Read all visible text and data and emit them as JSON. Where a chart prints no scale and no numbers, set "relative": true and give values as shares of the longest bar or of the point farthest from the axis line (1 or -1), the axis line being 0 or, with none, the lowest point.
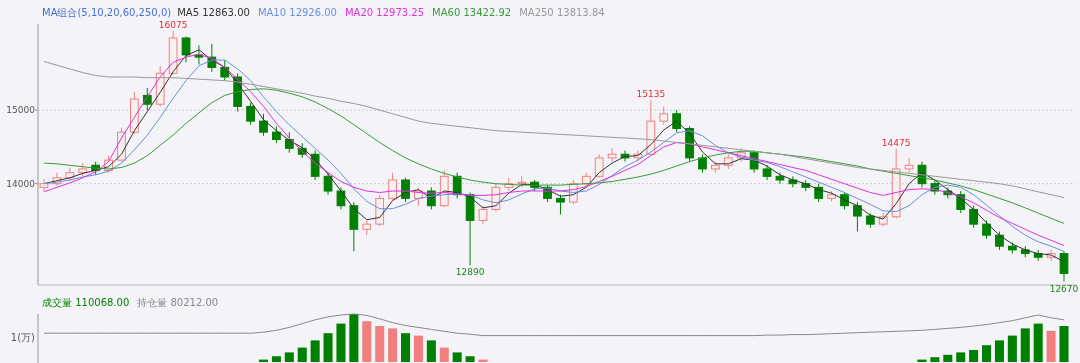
{
  "chart_data": [
    {
      "type": "candlestick",
      "categories": [
        null,
        null,
        null,
        null,
        null,
        null,
        null,
        null,
        null,
        null,
        null,
        null,
        null,
        null,
        null,
        null,
        null,
        null,
        null,
        null,
        null,
        null,
        null,
        null,
        null,
        null,
        null,
        null,
        null,
        null,
        null,
        null,
        null,
        null,
        null,
        null,
        null,
        null,
        null,
        null,
        null,
        null,
        null,
        null,
        null,
        null,
        null,
        null,
        null,
        null,
        null,
        null,
        null,
        null,
        null,
        null,
        null,
        null,
        null,
        null,
        null,
        null,
        null,
        null,
        null,
        null,
        null,
        null,
        null,
        null,
        null,
        null,
        null,
        null,
        null,
        null,
        null,
        null,
        null,
        null
      ],
      "ohlc": [
        [
          13950,
          14060,
          13900,
          14000
        ],
        [
          14000,
          14150,
          13970,
          14080
        ],
        [
          14080,
          14220,
          14040,
          14150
        ],
        [
          14150,
          14280,
          14100,
          14200
        ],
        [
          14250,
          14300,
          14120,
          14180
        ],
        [
          14180,
          14380,
          14150,
          14320
        ],
        [
          14320,
          14760,
          14300,
          14700
        ],
        [
          14700,
          15250,
          14680,
          15150
        ],
        [
          15200,
          15300,
          15000,
          15080
        ],
        [
          15080,
          15600,
          15050,
          15500
        ],
        [
          15500,
          16075,
          15480,
          15980
        ],
        [
          15980,
          16000,
          15650,
          15750
        ],
        [
          15750,
          15880,
          15620,
          15720
        ],
        [
          15720,
          15900,
          15520,
          15580
        ],
        [
          15580,
          15680,
          15400,
          15450
        ],
        [
          15450,
          15500,
          14980,
          15050
        ],
        [
          15050,
          15100,
          14800,
          14850
        ],
        [
          14850,
          14950,
          14650,
          14700
        ],
        [
          14700,
          14780,
          14550,
          14600
        ],
        [
          14600,
          14700,
          14420,
          14480
        ],
        [
          14480,
          14550,
          14350,
          14400
        ],
        [
          14400,
          14450,
          14050,
          14100
        ],
        [
          14100,
          14150,
          13850,
          13900
        ],
        [
          13900,
          13950,
          13650,
          13700
        ],
        [
          13700,
          13750,
          13080,
          13380
        ],
        [
          13380,
          13500,
          13300,
          13450
        ],
        [
          13450,
          13850,
          13420,
          13800
        ],
        [
          13800,
          14150,
          13780,
          14050
        ],
        [
          14050,
          14080,
          13750,
          13800
        ],
        [
          13800,
          13950,
          13700,
          13900
        ],
        [
          13900,
          13950,
          13650,
          13700
        ],
        [
          13700,
          14180,
          13680,
          14100
        ],
        [
          14100,
          14150,
          13800,
          13850
        ],
        [
          13850,
          13880,
          12890,
          13500
        ],
        [
          13500,
          13700,
          13450,
          13650
        ],
        [
          13650,
          14000,
          13620,
          13950
        ],
        [
          13950,
          14080,
          13900,
          14000
        ],
        [
          14000,
          14100,
          13950,
          14020
        ],
        [
          14020,
          14050,
          13900,
          13950
        ],
        [
          13950,
          13980,
          13750,
          13800
        ],
        [
          13800,
          13850,
          13580,
          13750
        ],
        [
          13750,
          14050,
          13720,
          14000
        ],
        [
          14000,
          14150,
          13950,
          14100
        ],
        [
          14100,
          14400,
          14080,
          14350
        ],
        [
          14350,
          14480,
          14300,
          14400
        ],
        [
          14400,
          14450,
          14300,
          14350
        ],
        [
          14350,
          14450,
          14300,
          14400
        ],
        [
          14400,
          15135,
          14380,
          14850
        ],
        [
          14850,
          15050,
          14800,
          14950
        ],
        [
          14950,
          15000,
          14700,
          14750
        ],
        [
          14750,
          14780,
          14300,
          14350
        ],
        [
          14350,
          14400,
          14150,
          14200
        ],
        [
          14200,
          14300,
          14150,
          14250
        ],
        [
          14250,
          14400,
          14200,
          14350
        ],
        [
          14350,
          14480,
          14300,
          14420
        ],
        [
          14420,
          14450,
          14150,
          14200
        ],
        [
          14200,
          14250,
          14050,
          14100
        ],
        [
          14100,
          14150,
          14000,
          14050
        ],
        [
          14050,
          14100,
          13950,
          14000
        ],
        [
          14000,
          14050,
          13900,
          13950
        ],
        [
          13950,
          14000,
          13750,
          13800
        ],
        [
          13800,
          13900,
          13760,
          13850
        ],
        [
          13850,
          13880,
          13650,
          13700
        ],
        [
          13700,
          13750,
          13350,
          13560
        ],
        [
          13560,
          13600,
          13400,
          13450
        ],
        [
          13450,
          13600,
          13420,
          13550
        ],
        [
          13550,
          14475,
          13530,
          14200
        ],
        [
          14200,
          14350,
          14150,
          14250
        ],
        [
          14250,
          14300,
          13950,
          14000
        ],
        [
          14000,
          14050,
          13850,
          13900
        ],
        [
          13900,
          13950,
          13800,
          13850
        ],
        [
          13850,
          13900,
          13600,
          13650
        ],
        [
          13650,
          13700,
          13400,
          13450
        ],
        [
          13450,
          13500,
          13250,
          13300
        ],
        [
          13300,
          13350,
          13100,
          13150
        ],
        [
          13150,
          13200,
          13050,
          13100
        ],
        [
          13100,
          13150,
          13000,
          13050
        ],
        [
          13050,
          13100,
          12950,
          13000
        ],
        [
          13000,
          13100,
          12950,
          13050
        ],
        [
          13050,
          13080,
          12670,
          12780
        ]
      ],
      "series": [
        {
          "type": "line",
          "name": "MA5 12863.00",
          "color": "#333333",
          "values": [
            14000,
            14040,
            14080,
            14140,
            14180,
            14230,
            14400,
            14720,
            14980,
            15240,
            15520,
            15740,
            15820,
            15680,
            15580,
            15360,
            15120,
            14870,
            14720,
            14590,
            14490,
            14330,
            14130,
            13900,
            13660,
            13510,
            13540,
            13770,
            13880,
            13920,
            13800,
            13900,
            13880,
            13820,
            13670,
            13700,
            13870,
            13990,
            13990,
            13920,
            13830,
            13850,
            13950,
            14150,
            14280,
            14370,
            14380,
            14530,
            14730,
            14850,
            14680,
            14430,
            14270,
            14270,
            14340,
            14320,
            14240,
            14120,
            14050,
            14000,
            13920,
            13870,
            13780,
            13700,
            13570,
            13520,
            13730,
            14000,
            14150,
            14050,
            13920,
            13800,
            13650,
            13470,
            13300,
            13180,
            13100,
            13050,
            13030,
            12940
          ]
        },
        {
          "type": "line",
          "name": "MA10 12926.00",
          "color": "#6a8fe0",
          "values": [
            14000,
            14020,
            14050,
            14090,
            14120,
            14170,
            14280,
            14460,
            14660,
            14900,
            15160,
            15400,
            15600,
            15680,
            15680,
            15560,
            15400,
            15180,
            14980,
            14800,
            14640,
            14480,
            14320,
            14140,
            13930,
            13760,
            13660,
            13660,
            13720,
            13800,
            13830,
            13850,
            13860,
            13850,
            13780,
            13740,
            13780,
            13860,
            13930,
            13940,
            13900,
            13880,
            13900,
            13990,
            14110,
            14230,
            14320,
            14430,
            14560,
            14690,
            14720,
            14650,
            14520,
            14420,
            14360,
            14320,
            14290,
            14230,
            14160,
            14090,
            14020,
            13950,
            13880,
            13800,
            13720,
            13630,
            13620,
            13700,
            13850,
            13950,
            13980,
            13950,
            13850,
            13710,
            13560,
            13420,
            13300,
            13210,
            13150,
            13080
          ]
        },
        {
          "type": "line",
          "name": "MA20 12973.25",
          "color": "#e030e0",
          "values": [
            13890,
            13950,
            14010,
            14080,
            14160,
            14300,
            14620,
            14900,
            15180,
            15450,
            15650,
            15720,
            15760,
            15700,
            15580,
            15420,
            15250,
            15050,
            14820,
            14620,
            14440,
            14280,
            14150,
            14030,
            13950,
            13900,
            13880,
            13900,
            13900,
            13880,
            13870,
            13880,
            13860,
            13840,
            13840,
            13850,
            13880,
            13900,
            13900,
            13900,
            13900,
            13920,
            13960,
            14030,
            14100,
            14180,
            14260,
            14380,
            14500,
            14560,
            14540,
            14500,
            14460,
            14420,
            14380,
            14340,
            14300,
            14260,
            14220,
            14180,
            14120,
            14060,
            14000,
            13940,
            13880,
            13840,
            13880,
            13920,
            13930,
            13920,
            13880,
            13820,
            13740,
            13640,
            13540,
            13460,
            13380,
            13300,
            13230,
            13160
          ]
        },
        {
          "type": "line",
          "name": "MA60 13422.92",
          "color": "#3a9a3a",
          "values": [
            14280,
            14270,
            14250,
            14230,
            14210,
            14200,
            14220,
            14280,
            14380,
            14520,
            14660,
            14820,
            14960,
            15100,
            15200,
            15250,
            15280,
            15290,
            15270,
            15230,
            15180,
            15110,
            15020,
            14920,
            14800,
            14680,
            14560,
            14450,
            14350,
            14270,
            14200,
            14140,
            14090,
            14050,
            14020,
            14000,
            13990,
            13980,
            13980,
            13980,
            13980,
            13990,
            14000,
            14010,
            14030,
            14060,
            14090,
            14130,
            14180,
            14240,
            14300,
            14350,
            14390,
            14420,
            14440,
            14440,
            14420,
            14400,
            14380,
            14360,
            14330,
            14300,
            14270,
            14240,
            14200,
            14170,
            14140,
            14110,
            14080,
            14050,
            14010,
            13970,
            13920,
            13860,
            13800,
            13740,
            13670,
            13600,
            13530,
            13460
          ]
        },
        {
          "type": "line",
          "name": "MA250 13813.84",
          "color": "#999999",
          "values": [
            15660,
            15610,
            15560,
            15510,
            15470,
            15450,
            15450,
            15450,
            15440,
            15440,
            15440,
            15430,
            15420,
            15410,
            15400,
            15380,
            15350,
            15320,
            15290,
            15260,
            15230,
            15190,
            15160,
            15120,
            15090,
            15050,
            15000,
            14950,
            14900,
            14850,
            14820,
            14800,
            14780,
            14760,
            14740,
            14720,
            14710,
            14700,
            14690,
            14680,
            14670,
            14660,
            14650,
            14640,
            14630,
            14620,
            14610,
            14600,
            14580,
            14560,
            14540,
            14520,
            14500,
            14480,
            14460,
            14440,
            14420,
            14400,
            14370,
            14340,
            14310,
            14280,
            14250,
            14220,
            14200,
            14180,
            14160,
            14140,
            14120,
            14100,
            14080,
            14060,
            14040,
            14020,
            14000,
            13970,
            13930,
            13890,
            13850,
            13810
          ]
        }
      ],
      "legend_title": "MA组合(5,10,20,60,250,0)",
      "legend": "top left",
      "ylim": [
        12650,
        16170
      ],
      "yticks": [
        14000,
        15000
      ],
      "grid": "y",
      "annotations": [
        {
          "text": "16075",
          "y": 16075
        },
        {
          "text": "15135",
          "y": 15135
        },
        {
          "text": "14475",
          "y": 14475
        },
        {
          "text": "12890",
          "y": 12890
        },
        {
          "text": "12670",
          "y": 12670
        }
      ]
    },
    {
      "type": "bar",
      "relative": true,
      "legend": "top left",
      "categories": [
        null,
        null,
        null,
        null,
        null,
        null,
        null,
        null,
        null,
        null,
        null,
        null,
        null,
        null,
        null,
        null,
        null,
        null,
        null,
        null,
        null,
        null,
        null,
        null,
        null,
        null,
        null,
        null,
        null,
        null,
        null,
        null,
        null,
        null,
        null,
        null,
        null,
        null,
        null,
        null,
        null,
        null,
        null,
        null,
        null,
        null,
        null,
        null,
        null,
        null,
        null,
        null,
        null,
        null,
        null,
        null,
        null,
        null,
        null,
        null,
        null,
        null,
        null,
        null,
        null,
        null,
        null,
        null,
        null,
        null,
        null,
        null,
        null,
        null,
        null,
        null,
        null,
        null,
        null,
        null
      ],
      "series": [
        {
          "type": "bar",
          "name": "成交量 110068.00",
          "color": "#008000",
          "colors": [
            "#f08080",
            "#f08080",
            "#f08080",
            "#f08080",
            "#008000",
            "#f08080",
            "#f08080",
            "#f08080",
            "#008000",
            "#f08080",
            "#f08080",
            "#008000",
            "#008000",
            "#008000",
            "#008000",
            "#008000",
            "#008000",
            "#008000",
            "#008000",
            "#008000",
            "#008000",
            "#008000",
            "#008000",
            "#008000",
            "#008000",
            "#f08080",
            "#f08080",
            "#f08080",
            "#008000",
            "#f08080",
            "#008000",
            "#f08080",
            "#008000",
            "#008000",
            "#f08080",
            "#f08080",
            "#f08080",
            "#f08080",
            "#008000",
            "#008000",
            "#008000",
            "#f08080",
            "#f08080",
            "#f08080",
            "#f08080",
            "#008000",
            "#f08080",
            "#f08080",
            "#f08080",
            "#008000",
            "#008000",
            "#008000",
            "#f08080",
            "#f08080",
            "#f08080",
            "#008000",
            "#008000",
            "#008000",
            "#008000",
            "#008000",
            "#008000",
            "#f08080",
            "#008000",
            "#008000",
            "#008000",
            "#f08080",
            "#f08080",
            "#f08080",
            "#008000",
            "#008000",
            "#008000",
            "#008000",
            "#008000",
            "#008000",
            "#008000",
            "#008000",
            "#008000",
            "#008000",
            "#f08080",
            "#008000"
          ],
          "values": [
            0,
            0,
            0,
            0,
            0,
            0,
            0,
            0,
            0,
            0,
            0,
            0,
            0,
            0,
            0,
            0,
            0,
            0.05,
            0.12,
            0.2,
            0.3,
            0.45,
            0.6,
            0.8,
            1.0,
            0.85,
            0.75,
            0.7,
            0.6,
            0.55,
            0.45,
            0.3,
            0.2,
            0.12,
            0.05,
            0,
            0,
            0,
            0,
            0,
            0,
            0,
            0,
            0,
            0,
            0,
            0,
            0,
            0,
            0,
            0,
            0,
            0,
            0,
            0,
            0,
            0,
            0,
            0,
            0,
            0,
            0,
            0,
            0,
            0,
            0,
            0,
            0,
            0.05,
            0.1,
            0.15,
            0.2,
            0.25,
            0.35,
            0.45,
            0.55,
            0.7,
            0.8,
            0.65,
            0.75
          ]
        },
        {
          "type": "line",
          "name": "持仓量 80212.00",
          "color": "#888888",
          "values": [
            0.6,
            0.6,
            0.6,
            0.6,
            0.6,
            0.6,
            0.6,
            0.6,
            0.6,
            0.6,
            0.6,
            0.6,
            0.6,
            0.6,
            0.6,
            0.6,
            0.6,
            0.62,
            0.66,
            0.72,
            0.8,
            0.88,
            0.94,
            0.98,
            1.0,
            0.97,
            0.9,
            0.82,
            0.76,
            0.72,
            0.68,
            0.64,
            0.6,
            0.58,
            0.55,
            0.55,
            0.55,
            0.55,
            0.55,
            0.55,
            0.55,
            0.55,
            0.55,
            0.55,
            0.55,
            0.55,
            0.55,
            0.55,
            0.55,
            0.55,
            0.55,
            0.55,
            0.55,
            0.55,
            0.55,
            0.55,
            0.56,
            0.56,
            0.57,
            0.57,
            0.58,
            0.59,
            0.6,
            0.61,
            0.62,
            0.63,
            0.64,
            0.65,
            0.66,
            0.68,
            0.7,
            0.72,
            0.75,
            0.78,
            0.82,
            0.86,
            0.92,
            0.98,
            0.92,
            0.88
          ]
        }
      ],
      "annotations": [
        "1(万)"
      ]
    }
  ]
}
